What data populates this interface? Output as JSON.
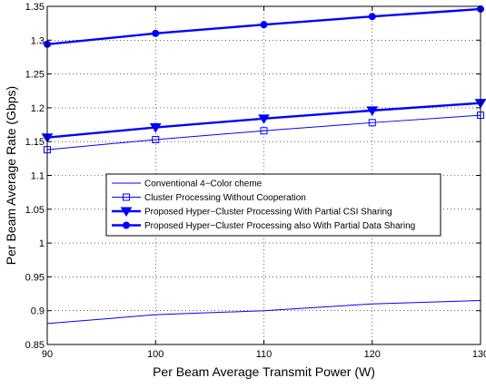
{
  "chart_data": {
    "type": "line",
    "title": "",
    "xlabel": "Per Beam Average Transmit Power (W)",
    "ylabel": "Per Beam Average Rate (Gbps)",
    "x": [
      90,
      100,
      110,
      120,
      130
    ],
    "xlim": [
      90,
      130
    ],
    "ylim": [
      0.85,
      1.35
    ],
    "x_ticks": [
      "90",
      "100",
      "110",
      "120",
      "130"
    ],
    "y_ticks": [
      "0.85",
      "0.9",
      "0.95",
      "1",
      "1.05",
      "1.1",
      "1.15",
      "1.2",
      "1.25",
      "1.3",
      "1.35"
    ],
    "grid": true,
    "legend_position": "center-left",
    "series": [
      {
        "name": "Conventional 4−Color cheme",
        "values": [
          0.881,
          0.894,
          0.9,
          0.91,
          0.915
        ],
        "color": "#0000ff",
        "marker": "none",
        "line_width": "thin"
      },
      {
        "name": "Cluster Processing Without Cooperation",
        "values": [
          1.138,
          1.153,
          1.166,
          1.178,
          1.189
        ],
        "color": "#0000ff",
        "marker": "square-open",
        "line_width": "thin"
      },
      {
        "name": "Proposed  Hyper−Cluster Processing With Partial CSI Sharing",
        "values": [
          1.156,
          1.171,
          1.184,
          1.196,
          1.207
        ],
        "color": "#0000ff",
        "marker": "triangle-down-filled",
        "line_width": "thick"
      },
      {
        "name": "Proposed Hyper−Cluster Processing also With Partial Data Sharing",
        "values": [
          1.294,
          1.31,
          1.323,
          1.335,
          1.346
        ],
        "color": "#0000ff",
        "marker": "circle-filled",
        "line_width": "thick"
      }
    ]
  }
}
